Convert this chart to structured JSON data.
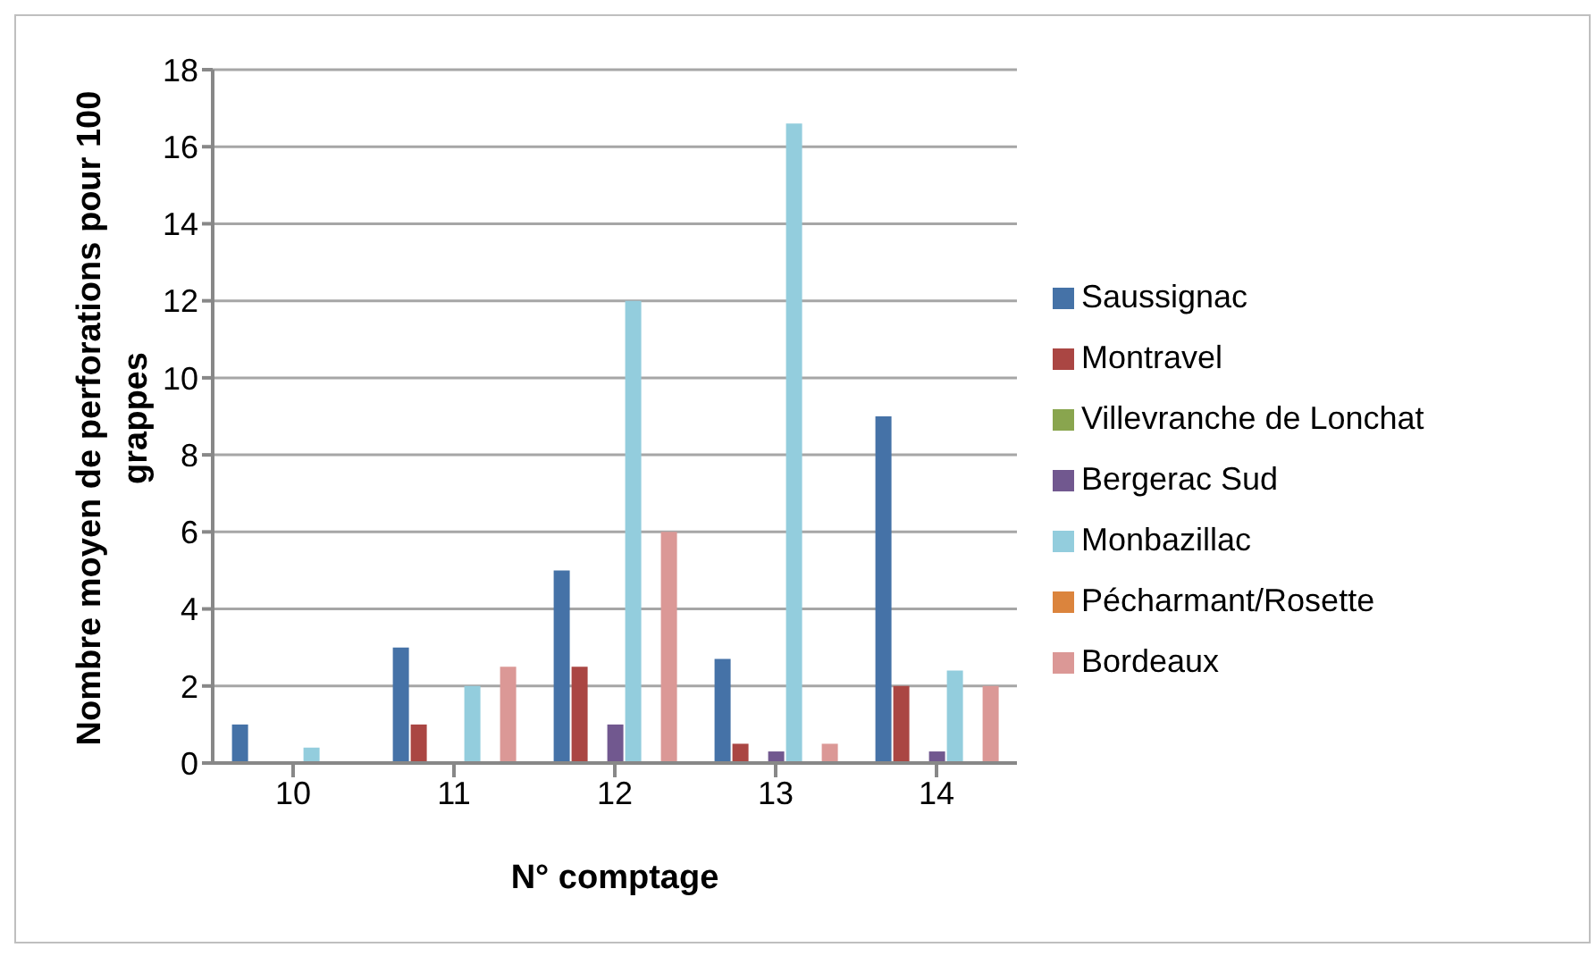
{
  "chart_data": {
    "type": "bar",
    "xlabel": "N° comptage",
    "ylabel": "Nombre moyen de perforations pour 100 grappes",
    "categories": [
      "10",
      "11",
      "12",
      "13",
      "14"
    ],
    "series": [
      {
        "name": "Saussignac",
        "color": "#4572a7",
        "values": [
          1,
          3,
          5,
          2.7,
          9
        ]
      },
      {
        "name": "Montravel",
        "color": "#aa4643",
        "values": [
          null,
          1,
          2.5,
          0.5,
          2
        ]
      },
      {
        "name": "Villevranche de Lonchat",
        "color": "#89a54e",
        "values": [
          null,
          null,
          null,
          null,
          null
        ]
      },
      {
        "name": "Bergerac Sud",
        "color": "#71588f",
        "values": [
          null,
          null,
          1,
          0.3,
          0.3
        ]
      },
      {
        "name": "Monbazillac",
        "color": "#93cddd",
        "values": [
          0.4,
          2,
          12,
          16.6,
          2.4
        ]
      },
      {
        "name": "Pécharmant/Rosette",
        "color": "#db843d",
        "values": [
          null,
          null,
          null,
          null,
          null
        ]
      },
      {
        "name": "Bordeaux",
        "color": "#db9896",
        "values": [
          null,
          2.5,
          6,
          0.5,
          2
        ]
      }
    ],
    "ylim": [
      0,
      18
    ],
    "yticks": [
      0,
      2,
      4,
      6,
      8,
      10,
      12,
      14,
      16,
      18
    ],
    "grid": "y",
    "legend": "right"
  }
}
